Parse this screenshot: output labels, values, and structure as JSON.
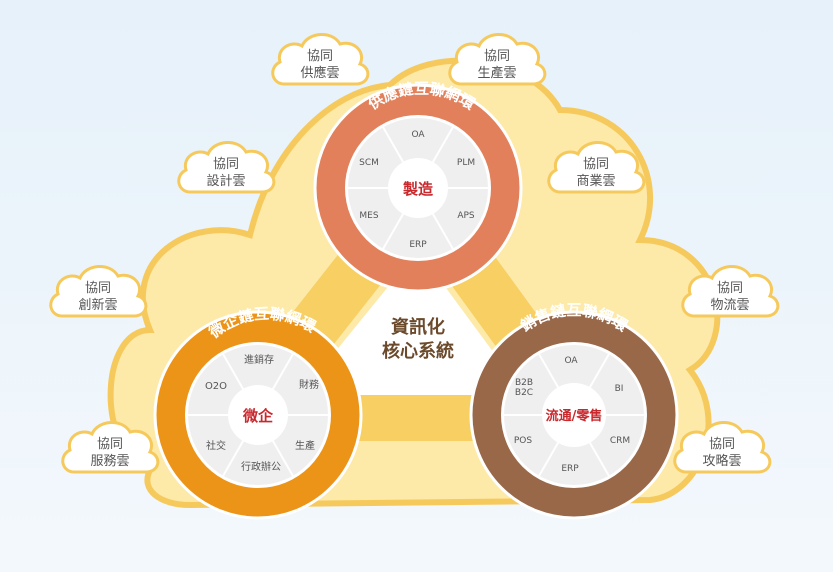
{
  "center": {
    "line1": "資訊化",
    "line2": "核心系統"
  },
  "rings": {
    "supply": {
      "title": "供應鏈互聯網環",
      "core": "製造",
      "segments": [
        "OA",
        "PLM",
        "APS",
        "ERP",
        "MES",
        "SCM"
      ]
    },
    "micro": {
      "title": "微企鏈互聯網環",
      "core": "微企",
      "segments": [
        "進銷存",
        "財務",
        "生產",
        "行政辦公",
        "社交",
        "O2O"
      ]
    },
    "sales": {
      "title": "銷售鏈互聯網環",
      "core": "流通/零售",
      "segments": [
        "OA",
        "BI",
        "CRM",
        "ERP",
        "POS",
        "B2B",
        "B2C"
      ]
    }
  },
  "clouds": {
    "supply_cloud": {
      "line1": "協同",
      "line2": "供應雲"
    },
    "production_cloud": {
      "line1": "協同",
      "line2": "生產雲"
    },
    "design_cloud": {
      "line1": "協同",
      "line2": "設計雲"
    },
    "business_cloud": {
      "line1": "協同",
      "line2": "商業雲"
    },
    "innovation_cloud": {
      "line1": "協同",
      "line2": "創新雲"
    },
    "logistics_cloud": {
      "line1": "協同",
      "line2": "物流雲"
    },
    "service_cloud": {
      "line1": "協同",
      "line2": "服務雲"
    },
    "strategy_cloud": {
      "line1": "協同",
      "line2": "攻略雲"
    }
  },
  "colors": {
    "supply_ring": "#e2805b",
    "micro_ring": "#ec9418",
    "sales_ring": "#986849",
    "core_text": "#c9282d",
    "big_cloud": "#fde7a1",
    "triangle": "#f8d36a"
  }
}
